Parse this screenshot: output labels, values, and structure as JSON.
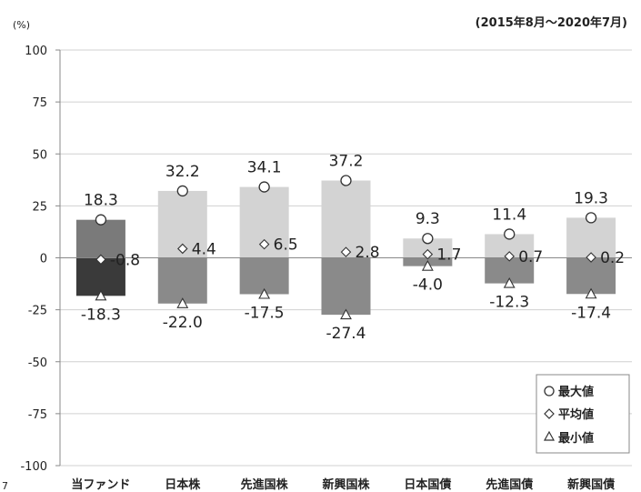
{
  "chart_data": {
    "type": "bar",
    "unit_label": "(%)",
    "period": "(2015年8月～2020年7月)",
    "categories": [
      "当ファンド",
      "日本株",
      "先進国株",
      "新興国株",
      "日本国債",
      "先進国債",
      "新興国債"
    ],
    "ylim": [
      -100,
      100
    ],
    "yticks": [
      100,
      75,
      50,
      25,
      0,
      -25,
      -50,
      -75,
      -100
    ],
    "left_edge_label": "7",
    "grid": true,
    "series": [
      {
        "name": "最大値",
        "marker": "circle",
        "values": [
          18.3,
          32.2,
          34.1,
          37.2,
          9.3,
          11.4,
          19.3
        ]
      },
      {
        "name": "平均値",
        "marker": "diamond",
        "values": [
          -0.8,
          4.4,
          6.5,
          2.8,
          1.7,
          0.7,
          0.2
        ]
      },
      {
        "name": "最小値",
        "marker": "triangle",
        "values": [
          -18.3,
          -22.0,
          -17.5,
          -27.4,
          -4.0,
          -12.3,
          -17.4
        ]
      }
    ],
    "max_labels": [
      "18.3",
      "32.2",
      "34.1",
      "37.2",
      "9.3",
      "11.4",
      "19.3"
    ],
    "avg_labels": [
      "-0.8",
      "4.4",
      "6.5",
      "2.8",
      "1.7",
      "0.7",
      "0.2"
    ],
    "min_labels": [
      "-18.3",
      "-22.0",
      "-17.5",
      "-27.4",
      "-4.0",
      "-12.3",
      "-17.4"
    ],
    "legend_position": "bottom-right",
    "colors": {
      "fund_pos": "#7a7a7a",
      "fund_neg": "#3a3a3a",
      "asset_pos": "#d3d3d3",
      "asset_neg": "#8a8a8a",
      "grid": "#d0d0d0",
      "axis": "#888888"
    }
  }
}
